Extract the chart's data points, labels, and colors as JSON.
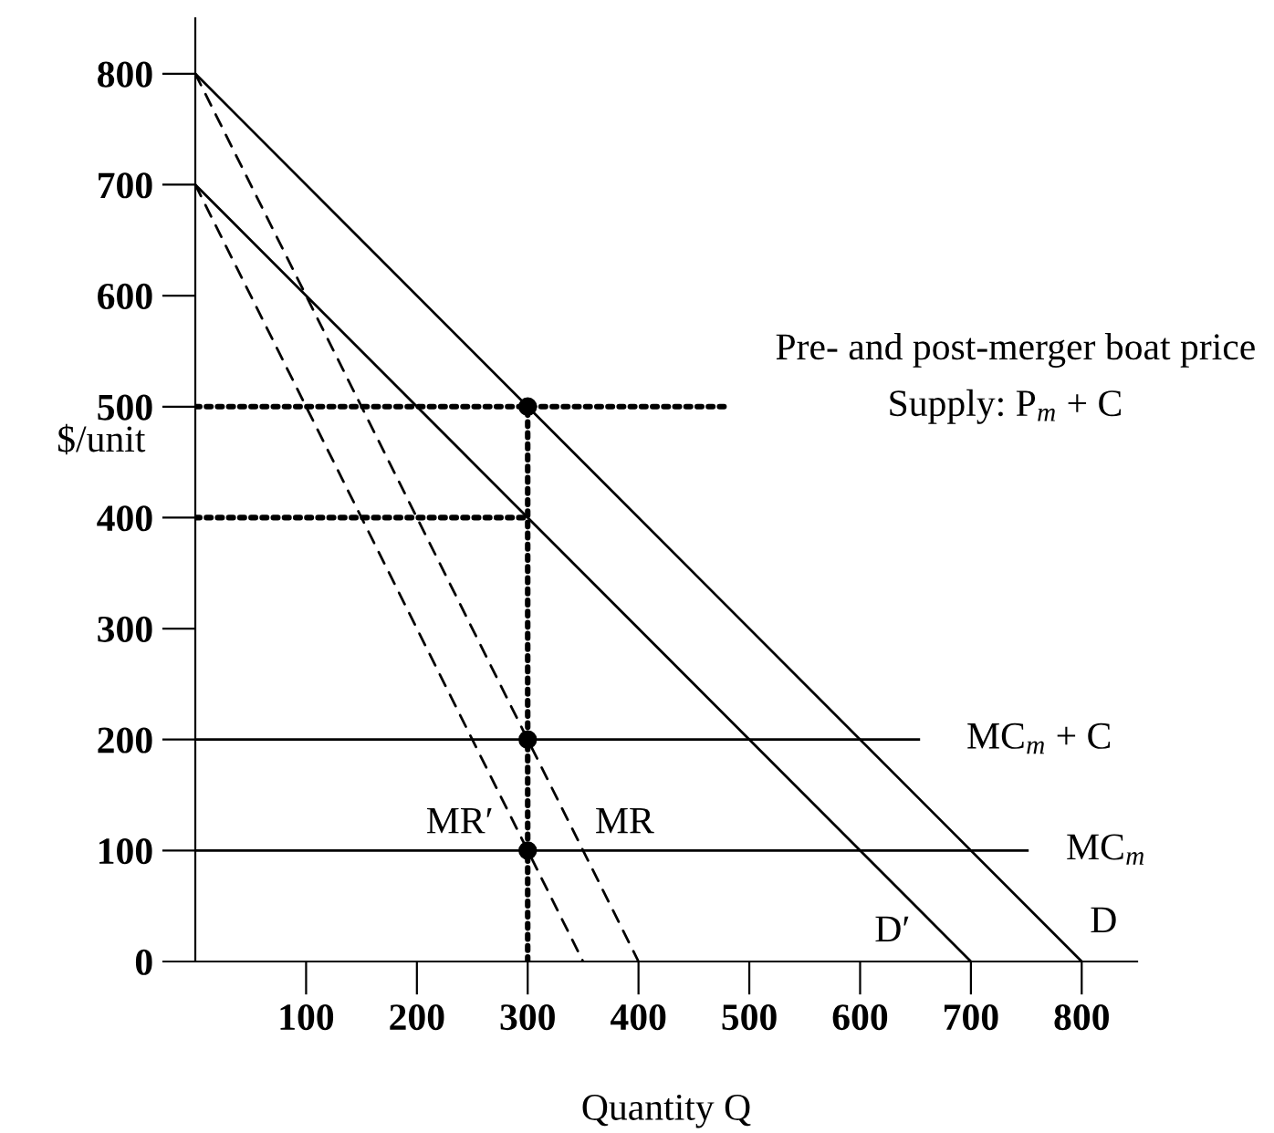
{
  "chart_data": {
    "type": "line",
    "xlabel": "Quantity Q",
    "ylabel": "$/unit",
    "xlim": [
      0,
      850
    ],
    "ylim": [
      0,
      850
    ],
    "xticks": [
      100,
      200,
      300,
      400,
      500,
      600,
      700,
      800
    ],
    "yticks": [
      0,
      100,
      200,
      300,
      400,
      500,
      600,
      700,
      800
    ],
    "grid": false,
    "legend": false,
    "series": [
      {
        "name": "D",
        "color": "#000000",
        "line_style": "solid",
        "x": [
          0,
          800
        ],
        "values": [
          800,
          0
        ]
      },
      {
        "name": "D′",
        "color": "#000000",
        "line_style": "solid",
        "x": [
          0,
          700
        ],
        "values": [
          700,
          0
        ]
      },
      {
        "name": "MR",
        "color": "#000000",
        "line_style": "dashed",
        "x": [
          0,
          400
        ],
        "values": [
          800,
          0
        ]
      },
      {
        "name": "MR′",
        "color": "#000000",
        "line_style": "dashed",
        "x": [
          0,
          350
        ],
        "values": [
          700,
          0
        ]
      },
      {
        "name": "MC$_{m}$",
        "color": "#000000",
        "line_style": "solid",
        "x": [
          0,
          751
        ],
        "values": [
          100,
          100
        ]
      },
      {
        "name": "MC$_{m}$ + C",
        "color": "#000000",
        "line_style": "solid",
        "x": [
          0,
          653
        ],
        "values": [
          200,
          200
        ]
      },
      {
        "color": "#000000",
        "line_style": "dotted",
        "x": [
          0,
          482
        ],
        "values": [
          500,
          500
        ]
      },
      {
        "color": "#000000",
        "line_style": "dotted",
        "x": [
          0,
          300
        ],
        "values": [
          400,
          400
        ]
      },
      {
        "color": "#000000",
        "line_style": "dotted",
        "x": [
          300,
          300
        ],
        "values": [
          0,
          500
        ]
      },
      {
        "type": "scatter",
        "color": "#000000",
        "marker": "circle",
        "x": [
          300,
          300,
          300
        ],
        "values": [
          500,
          200,
          100
        ]
      }
    ],
    "annotations": [
      "Pre- and post-merger boat price",
      "Supply: P$_{m}$ + C"
    ]
  }
}
